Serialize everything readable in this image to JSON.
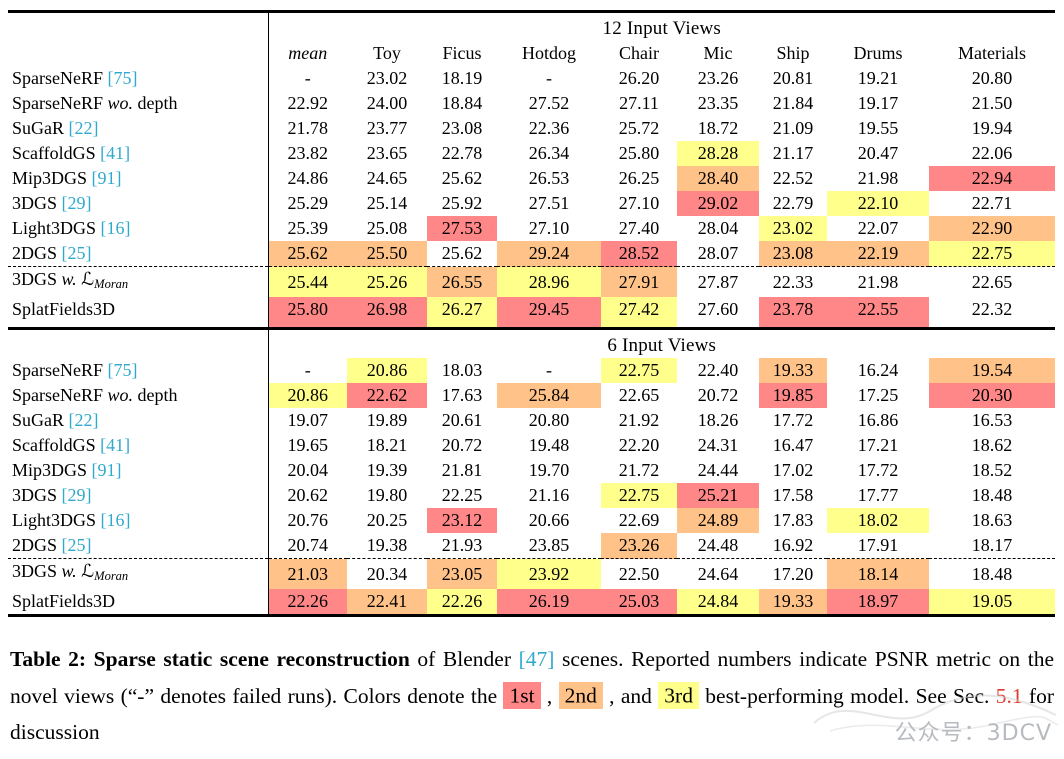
{
  "colors": {
    "hl1": "#FF8787",
    "hl2": "#FFC288",
    "hl3": "#FFFF8C",
    "cite": "#2FA9CE",
    "ref": "#DD3B2F"
  },
  "table": {
    "columns": [
      "mean",
      "Toy",
      "Ficus",
      "Hotdog",
      "Chair",
      "Mic",
      "Ship",
      "Drums",
      "Materials"
    ],
    "sections": [
      {
        "title": "12 Input Views",
        "rows": [
          {
            "method": [
              [
                "SparseNeRF ",
                ""
              ],
              [
                "[75]",
                "cite"
              ]
            ],
            "values": [
              "-",
              "23.02",
              "18.19",
              "-",
              "26.20",
              "23.26",
              "20.81",
              "19.21",
              "20.80"
            ],
            "hl": [
              0,
              0,
              0,
              0,
              0,
              0,
              0,
              0,
              0
            ]
          },
          {
            "method": [
              [
                "SparseNeRF ",
                ""
              ],
              [
                "wo.",
                "it"
              ],
              [
                " depth",
                ""
              ]
            ],
            "values": [
              "22.92",
              "24.00",
              "18.84",
              "27.52",
              "27.11",
              "23.35",
              "21.84",
              "19.17",
              "21.50"
            ],
            "hl": [
              0,
              0,
              0,
              0,
              0,
              0,
              0,
              0,
              0
            ]
          },
          {
            "method": [
              [
                "SuGaR ",
                ""
              ],
              [
                "[22]",
                "cite"
              ]
            ],
            "values": [
              "21.78",
              "23.77",
              "23.08",
              "22.36",
              "25.72",
              "18.72",
              "21.09",
              "19.55",
              "19.94"
            ],
            "hl": [
              0,
              0,
              0,
              0,
              0,
              0,
              0,
              0,
              0
            ]
          },
          {
            "method": [
              [
                "ScaffoldGS ",
                ""
              ],
              [
                "[41]",
                "cite"
              ]
            ],
            "values": [
              "23.82",
              "23.65",
              "22.78",
              "26.34",
              "25.80",
              "28.28",
              "21.17",
              "20.47",
              "22.06"
            ],
            "hl": [
              0,
              0,
              0,
              0,
              0,
              3,
              0,
              0,
              0
            ]
          },
          {
            "method": [
              [
                "Mip3DGS ",
                ""
              ],
              [
                "[91]",
                "cite"
              ]
            ],
            "values": [
              "24.86",
              "24.65",
              "25.62",
              "26.53",
              "26.25",
              "28.40",
              "22.52",
              "21.98",
              "22.94"
            ],
            "hl": [
              0,
              0,
              0,
              0,
              0,
              2,
              0,
              0,
              1
            ]
          },
          {
            "method": [
              [
                "3DGS ",
                ""
              ],
              [
                "[29]",
                "cite"
              ]
            ],
            "values": [
              "25.29",
              "25.14",
              "25.92",
              "27.51",
              "27.10",
              "29.02",
              "22.79",
              "22.10",
              "22.71"
            ],
            "hl": [
              0,
              0,
              0,
              0,
              0,
              1,
              0,
              3,
              0
            ]
          },
          {
            "method": [
              [
                "Light3DGS ",
                ""
              ],
              [
                "[16]",
                "cite"
              ]
            ],
            "values": [
              "25.39",
              "25.08",
              "27.53",
              "27.10",
              "27.40",
              "28.04",
              "23.02",
              "22.07",
              "22.90"
            ],
            "hl": [
              0,
              0,
              1,
              0,
              0,
              0,
              3,
              0,
              2
            ]
          },
          {
            "method": [
              [
                "2DGS ",
                ""
              ],
              [
                "[25]",
                "cite"
              ]
            ],
            "values": [
              "25.62",
              "25.50",
              "25.62",
              "29.24",
              "28.52",
              "28.07",
              "23.08",
              "22.19",
              "22.75"
            ],
            "hl": [
              2,
              2,
              0,
              2,
              1,
              0,
              2,
              2,
              3
            ]
          },
          {
            "method": [
              [
                "3DGS ",
                ""
              ],
              [
                "w. ",
                "it"
              ],
              [
                "ℒ",
                "cal"
              ],
              [
                "Moran",
                "sub"
              ]
            ],
            "values": [
              "25.44",
              "25.26",
              "26.55",
              "28.96",
              "27.91",
              "27.87",
              "22.33",
              "21.98",
              "22.65"
            ],
            "hl": [
              3,
              3,
              2,
              3,
              2,
              0,
              0,
              0,
              0
            ],
            "dashed": true
          },
          {
            "method": [
              [
                "SplatFields3D",
                ""
              ]
            ],
            "values": [
              "25.80",
              "26.98",
              "26.27",
              "29.45",
              "27.42",
              "27.60",
              "23.78",
              "22.55",
              "22.32"
            ],
            "hl": [
              1,
              1,
              3,
              1,
              3,
              0,
              1,
              1,
              0
            ]
          }
        ]
      },
      {
        "title": "6 Input Views",
        "rows": [
          {
            "method": [
              [
                "SparseNeRF ",
                ""
              ],
              [
                "[75]",
                "cite"
              ]
            ],
            "values": [
              "-",
              "20.86",
              "18.03",
              "-",
              "22.75",
              "22.40",
              "19.33",
              "16.24",
              "19.54"
            ],
            "hl": [
              0,
              3,
              0,
              0,
              3,
              0,
              2,
              0,
              2
            ]
          },
          {
            "method": [
              [
                "SparseNeRF ",
                ""
              ],
              [
                "wo.",
                "it"
              ],
              [
                " depth",
                ""
              ]
            ],
            "values": [
              "20.86",
              "22.62",
              "17.63",
              "25.84",
              "22.65",
              "20.72",
              "19.85",
              "17.25",
              "20.30"
            ],
            "hl": [
              3,
              1,
              0,
              2,
              0,
              0,
              1,
              0,
              1
            ]
          },
          {
            "method": [
              [
                "SuGaR ",
                ""
              ],
              [
                "[22]",
                "cite"
              ]
            ],
            "values": [
              "19.07",
              "19.89",
              "20.61",
              "20.80",
              "21.92",
              "18.26",
              "17.72",
              "16.86",
              "16.53"
            ],
            "hl": [
              0,
              0,
              0,
              0,
              0,
              0,
              0,
              0,
              0
            ]
          },
          {
            "method": [
              [
                "ScaffoldGS ",
                ""
              ],
              [
                "[41]",
                "cite"
              ]
            ],
            "values": [
              "19.65",
              "18.21",
              "20.72",
              "19.48",
              "22.20",
              "24.31",
              "16.47",
              "17.21",
              "18.62"
            ],
            "hl": [
              0,
              0,
              0,
              0,
              0,
              0,
              0,
              0,
              0
            ]
          },
          {
            "method": [
              [
                "Mip3DGS ",
                ""
              ],
              [
                "[91]",
                "cite"
              ]
            ],
            "values": [
              "20.04",
              "19.39",
              "21.81",
              "19.70",
              "21.72",
              "24.44",
              "17.02",
              "17.72",
              "18.52"
            ],
            "hl": [
              0,
              0,
              0,
              0,
              0,
              0,
              0,
              0,
              0
            ]
          },
          {
            "method": [
              [
                "3DGS ",
                ""
              ],
              [
                "[29]",
                "cite"
              ]
            ],
            "values": [
              "20.62",
              "19.80",
              "22.25",
              "21.16",
              "22.75",
              "25.21",
              "17.58",
              "17.77",
              "18.48"
            ],
            "hl": [
              0,
              0,
              0,
              0,
              3,
              1,
              0,
              0,
              0
            ]
          },
          {
            "method": [
              [
                "Light3DGS ",
                ""
              ],
              [
                "[16]",
                "cite"
              ]
            ],
            "values": [
              "20.76",
              "20.25",
              "23.12",
              "20.66",
              "22.69",
              "24.89",
              "17.83",
              "18.02",
              "18.63"
            ],
            "hl": [
              0,
              0,
              1,
              0,
              0,
              2,
              0,
              3,
              0
            ]
          },
          {
            "method": [
              [
                "2DGS ",
                ""
              ],
              [
                "[25]",
                "cite"
              ]
            ],
            "values": [
              "20.74",
              "19.38",
              "21.93",
              "23.85",
              "23.26",
              "24.48",
              "16.92",
              "17.91",
              "18.17"
            ],
            "hl": [
              0,
              0,
              0,
              0,
              2,
              0,
              0,
              0,
              0
            ]
          },
          {
            "method": [
              [
                "3DGS ",
                ""
              ],
              [
                "w. ",
                "it"
              ],
              [
                "ℒ",
                "cal"
              ],
              [
                "Moran",
                "sub"
              ]
            ],
            "values": [
              "21.03",
              "20.34",
              "23.05",
              "23.92",
              "22.50",
              "24.64",
              "17.20",
              "18.14",
              "18.48"
            ],
            "hl": [
              2,
              0,
              2,
              3,
              0,
              0,
              0,
              2,
              0
            ],
            "dashed": true
          },
          {
            "method": [
              [
                "SplatFields3D",
                ""
              ]
            ],
            "values": [
              "22.26",
              "22.41",
              "22.26",
              "26.19",
              "25.03",
              "24.84",
              "19.33",
              "18.97",
              "19.05"
            ],
            "hl": [
              1,
              2,
              3,
              1,
              1,
              3,
              2,
              1,
              3
            ]
          }
        ]
      }
    ]
  },
  "caption": {
    "segments": [
      [
        "Table 2: Sparse static scene reconstruction",
        "b"
      ],
      [
        " of Blender ",
        ""
      ],
      [
        "[47]",
        "cite"
      ],
      [
        " scenes. Reported numbers indicate PSNR metric on the novel views (“-” denotes failed runs). Colors denote the ",
        ""
      ],
      [
        "1st",
        "chip1"
      ],
      [
        " , ",
        ""
      ],
      [
        "2nd",
        "chip2"
      ],
      [
        " , and ",
        ""
      ],
      [
        "3rd",
        "chip3"
      ],
      [
        " best-performing model. See Sec. ",
        ""
      ],
      [
        "5.1",
        "ref"
      ],
      [
        " for discussion",
        ""
      ]
    ]
  },
  "watermark": "公众号：3DCV"
}
